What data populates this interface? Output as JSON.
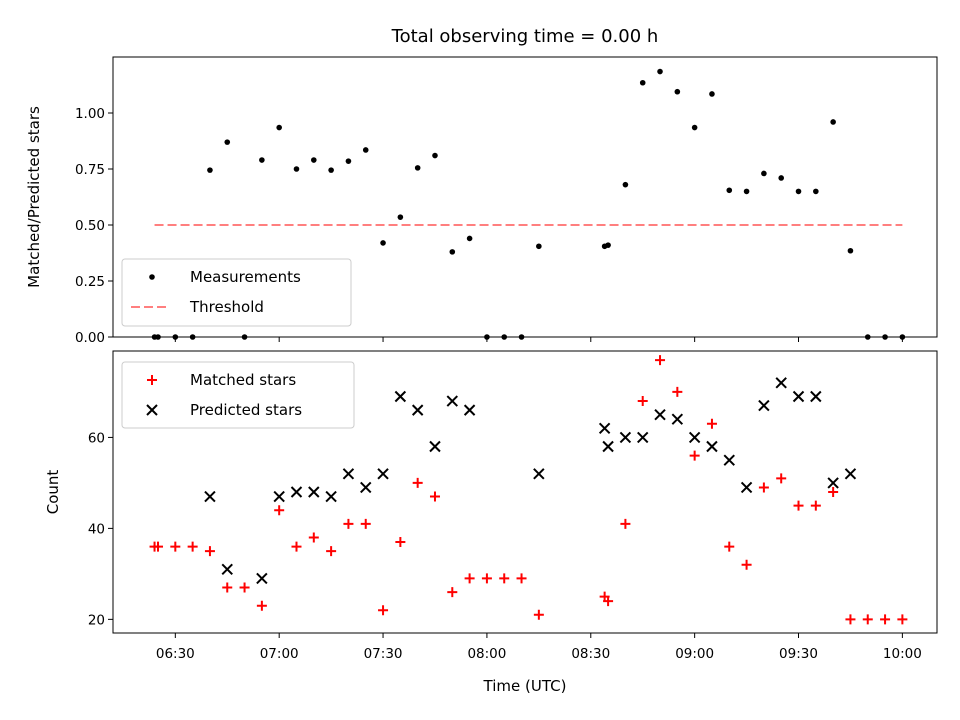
{
  "figure": {
    "title": "Total observing time = 0.00 h",
    "background": "#ffffff"
  },
  "chart_data": [
    {
      "type": "scatter",
      "ylabel": "Matched/Predicted stars",
      "xlabel": "",
      "xlim": [
        "06:12",
        "10:10"
      ],
      "ylim": [
        0,
        1.25
      ],
      "yticks": [
        0,
        0.25,
        0.5,
        0.75,
        1.0
      ],
      "ytick_labels": [
        "0.00",
        "0.25",
        "0.50",
        "0.75",
        "1.00"
      ],
      "xticks": [
        "06:30",
        "07:00",
        "07:30",
        "08:00",
        "08:30",
        "09:00",
        "09:30",
        "10:00"
      ],
      "grid": false,
      "legend_position": "lower-left",
      "series": [
        {
          "name": "Measurements",
          "kind": "scatter",
          "marker": "dot",
          "color": "#000000",
          "points": [
            [
              "06:24",
              0
            ],
            [
              "06:25",
              0
            ],
            [
              "06:30",
              0
            ],
            [
              "06:35",
              0
            ],
            [
              "06:40",
              0.745
            ],
            [
              "06:45",
              0.87
            ],
            [
              "06:50",
              0
            ],
            [
              "06:55",
              0.79
            ],
            [
              "07:00",
              0.935
            ],
            [
              "07:05",
              0.75
            ],
            [
              "07:10",
              0.79
            ],
            [
              "07:15",
              0.745
            ],
            [
              "07:20",
              0.785
            ],
            [
              "07:25",
              0.835
            ],
            [
              "07:30",
              0.42
            ],
            [
              "07:35",
              0.535
            ],
            [
              "07:40",
              0.755
            ],
            [
              "07:45",
              0.81
            ],
            [
              "07:50",
              0.38
            ],
            [
              "07:55",
              0.44
            ],
            [
              "08:00",
              0
            ],
            [
              "08:05",
              0
            ],
            [
              "08:10",
              0
            ],
            [
              "08:15",
              0.405
            ],
            [
              "08:34",
              0.405
            ],
            [
              "08:35",
              0.41
            ],
            [
              "08:40",
              0.68
            ],
            [
              "08:45",
              1.135
            ],
            [
              "08:50",
              1.185
            ],
            [
              "08:55",
              1.095
            ],
            [
              "09:00",
              0.935
            ],
            [
              "09:05",
              1.085
            ],
            [
              "09:10",
              0.655
            ],
            [
              "09:15",
              0.65
            ],
            [
              "09:20",
              0.73
            ],
            [
              "09:25",
              0.71
            ],
            [
              "09:30",
              0.65
            ],
            [
              "09:35",
              0.65
            ],
            [
              "09:40",
              0.96
            ],
            [
              "09:45",
              0.385
            ],
            [
              "09:50",
              0
            ],
            [
              "09:55",
              0
            ],
            [
              "10:00",
              0
            ]
          ]
        },
        {
          "name": "Threshold",
          "kind": "line",
          "style": "dashed",
          "color": "#ff7f7f",
          "points": [
            [
              "06:24",
              0.5
            ],
            [
              "10:00",
              0.5
            ]
          ]
        }
      ]
    },
    {
      "type": "scatter",
      "ylabel": "Count",
      "xlabel": "Time (UTC)",
      "xlim": [
        "06:12",
        "10:10"
      ],
      "ylim": [
        17,
        79
      ],
      "yticks": [
        20,
        40,
        60
      ],
      "ytick_labels": [
        "20",
        "40",
        "60"
      ],
      "xticks": [
        "06:30",
        "07:00",
        "07:30",
        "08:00",
        "08:30",
        "09:00",
        "09:30",
        "10:00"
      ],
      "xtick_labels": [
        "06:30",
        "07:00",
        "07:30",
        "08:00",
        "08:30",
        "09:00",
        "09:30",
        "10:00"
      ],
      "grid": false,
      "legend_position": "upper-left",
      "series": [
        {
          "name": "Matched stars",
          "kind": "scatter",
          "marker": "plus",
          "color": "#ff0000",
          "points": [
            [
              "06:24",
              36
            ],
            [
              "06:25",
              36
            ],
            [
              "06:30",
              36
            ],
            [
              "06:35",
              36
            ],
            [
              "06:40",
              35
            ],
            [
              "06:45",
              27
            ],
            [
              "06:50",
              27
            ],
            [
              "06:55",
              23
            ],
            [
              "07:00",
              44
            ],
            [
              "07:05",
              36
            ],
            [
              "07:10",
              38
            ],
            [
              "07:15",
              35
            ],
            [
              "07:20",
              41
            ],
            [
              "07:25",
              41
            ],
            [
              "07:30",
              22
            ],
            [
              "07:35",
              37
            ],
            [
              "07:40",
              50
            ],
            [
              "07:45",
              47
            ],
            [
              "07:50",
              26
            ],
            [
              "07:55",
              29
            ],
            [
              "08:00",
              29
            ],
            [
              "08:05",
              29
            ],
            [
              "08:10",
              29
            ],
            [
              "08:15",
              21
            ],
            [
              "08:34",
              25
            ],
            [
              "08:35",
              24
            ],
            [
              "08:40",
              41
            ],
            [
              "08:45",
              68
            ],
            [
              "08:50",
              77
            ],
            [
              "08:55",
              70
            ],
            [
              "09:00",
              56
            ],
            [
              "09:05",
              63
            ],
            [
              "09:10",
              36
            ],
            [
              "09:15",
              32
            ],
            [
              "09:20",
              49
            ],
            [
              "09:25",
              51
            ],
            [
              "09:30",
              45
            ],
            [
              "09:35",
              45
            ],
            [
              "09:40",
              48
            ],
            [
              "09:45",
              20
            ],
            [
              "09:50",
              20
            ],
            [
              "09:55",
              20
            ],
            [
              "10:00",
              20
            ]
          ]
        },
        {
          "name": "Predicted stars",
          "kind": "scatter",
          "marker": "x",
          "color": "#000000",
          "points": [
            [
              "06:40",
              47
            ],
            [
              "06:45",
              31
            ],
            [
              "06:55",
              29
            ],
            [
              "07:00",
              47
            ],
            [
              "07:05",
              48
            ],
            [
              "07:10",
              48
            ],
            [
              "07:15",
              47
            ],
            [
              "07:20",
              52
            ],
            [
              "07:25",
              49
            ],
            [
              "07:30",
              52
            ],
            [
              "07:35",
              69
            ],
            [
              "07:40",
              66
            ],
            [
              "07:45",
              58
            ],
            [
              "07:50",
              68
            ],
            [
              "07:55",
              66
            ],
            [
              "08:15",
              52
            ],
            [
              "08:34",
              62
            ],
            [
              "08:35",
              58
            ],
            [
              "08:40",
              60
            ],
            [
              "08:45",
              60
            ],
            [
              "08:50",
              65
            ],
            [
              "08:55",
              64
            ],
            [
              "09:00",
              60
            ],
            [
              "09:05",
              58
            ],
            [
              "09:10",
              55
            ],
            [
              "09:15",
              49
            ],
            [
              "09:20",
              67
            ],
            [
              "09:25",
              72
            ],
            [
              "09:30",
              69
            ],
            [
              "09:35",
              69
            ],
            [
              "09:40",
              50
            ],
            [
              "09:45",
              52
            ]
          ]
        }
      ]
    }
  ]
}
